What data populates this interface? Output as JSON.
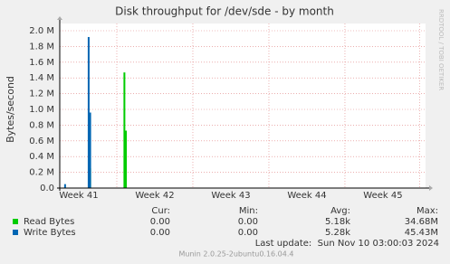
{
  "chart_data": {
    "type": "spike",
    "title": "Disk throughput for /dev/sde - by month",
    "y_label": "Bytes/second",
    "side_text": "RRDTOOL / TOBI OETIKER",
    "xlim": [
      40.75,
      45.56
    ],
    "xticks": [
      {
        "value": 41,
        "label": "Week 41"
      },
      {
        "value": 42,
        "label": "Week 42"
      },
      {
        "value": 43,
        "label": "Week 43"
      },
      {
        "value": 44,
        "label": "Week 44"
      },
      {
        "value": 45,
        "label": "Week 45"
      }
    ],
    "xgrid": [
      41.5,
      42.5,
      43.5,
      44.5,
      45.48
    ],
    "ylim": [
      0,
      2000000
    ],
    "yticks": [
      {
        "value": 0,
        "label": "0.0"
      },
      {
        "value": 200000,
        "label": "0.2 M"
      },
      {
        "value": 400000,
        "label": "0.4 M"
      },
      {
        "value": 600000,
        "label": "0.6 M"
      },
      {
        "value": 800000,
        "label": "0.8 M"
      },
      {
        "value": 1000000,
        "label": "1.0 M"
      },
      {
        "value": 1200000,
        "label": "1.2 M"
      },
      {
        "value": 1400000,
        "label": "1.4 M"
      },
      {
        "value": 1600000,
        "label": "1.6 M"
      },
      {
        "value": 1800000,
        "label": "1.8 M"
      },
      {
        "value": 2000000,
        "label": "2.0 M"
      }
    ],
    "grid": true,
    "series": [
      {
        "name": "Read Bytes",
        "color": "#00cc00",
        "x": [
          41.15,
          41.6,
          41.62
        ],
        "values": [
          250000,
          1470000,
          730000
        ]
      },
      {
        "name": "Write Bytes",
        "color": "#0066b3",
        "x": [
          40.82,
          41.13,
          41.15
        ],
        "values": [
          50000,
          1920000,
          960000
        ]
      }
    ],
    "legend_table": {
      "headers": [
        "Cur:",
        "Min:",
        "Avg:",
        "Max:"
      ],
      "rows": [
        [
          "0.00",
          "0.00",
          "5.18k",
          "34.68M"
        ],
        [
          "0.00",
          "0.00",
          "5.28k",
          "45.43M"
        ]
      ]
    },
    "last_update": "Last update:  Sun Nov 10 03:00:03 2024",
    "footer": "Munin 2.0.25-2ubuntu0.16.04.4"
  }
}
